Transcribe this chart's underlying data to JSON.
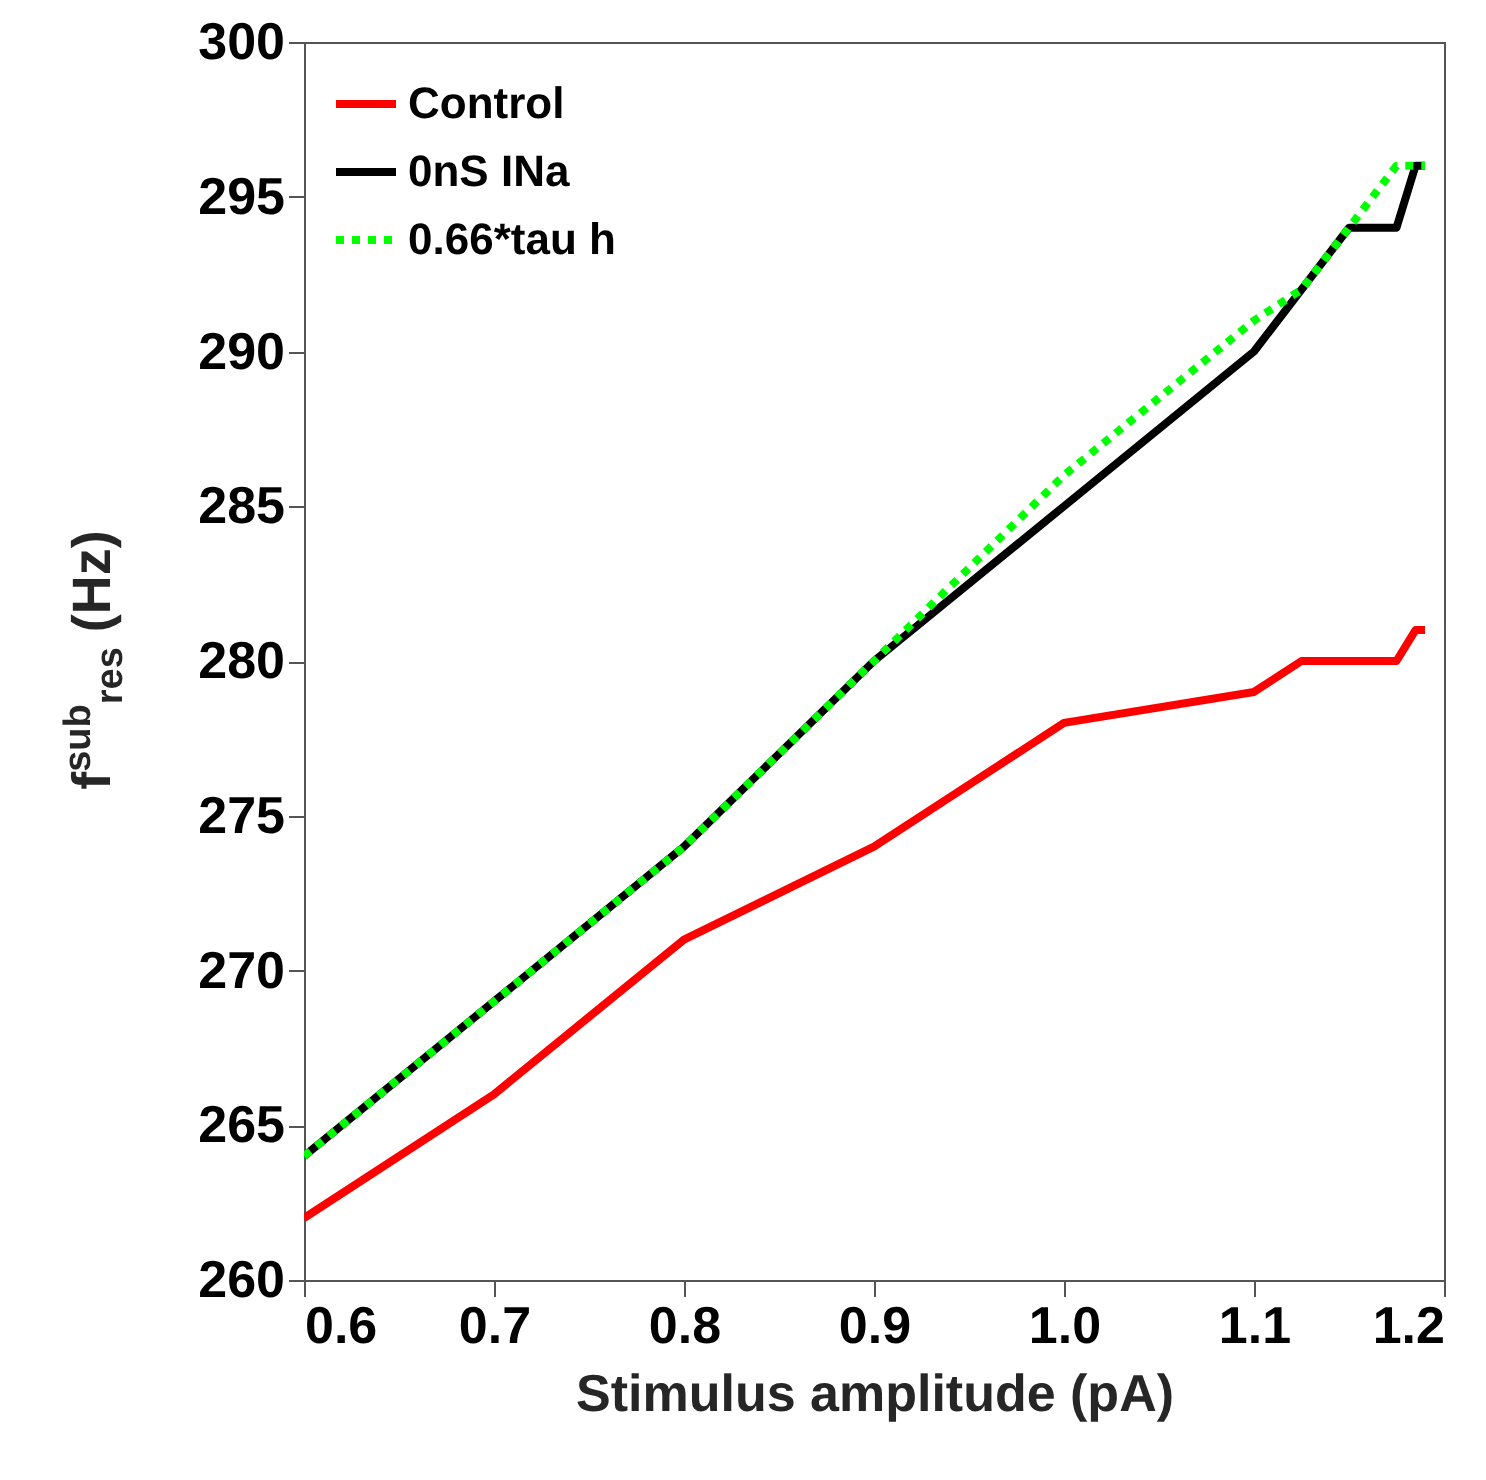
{
  "chart_data": {
    "type": "line",
    "xlabel": "Stimulus amplitude (pA)",
    "ylabel": "f$^{sub}$$_{res}$ (Hz)",
    "xlim": [
      0.6,
      1.2
    ],
    "xticks": [
      0.6,
      0.7,
      0.8,
      0.9,
      {
        "value": 1,
        "label": "1.0"
      },
      1.1,
      1.2
    ],
    "ylim": [
      260,
      300
    ],
    "yticks": [
      260,
      265,
      270,
      275,
      280,
      285,
      290,
      295,
      300
    ],
    "grid": false,
    "legend": "top left",
    "marker": "none",
    "series": [
      {
        "name": "Control",
        "color": "#ff0000",
        "line_style": "solid",
        "x": [
          0.6,
          0.7,
          0.8,
          0.9,
          1.0,
          1.1,
          1.125,
          1.175,
          1.185,
          1.19
        ],
        "values": [
          262,
          266,
          271,
          274,
          278,
          279,
          280,
          280,
          281,
          281
        ]
      },
      {
        "name": "0nS INa",
        "color": "#000000",
        "line_style": "solid",
        "x": [
          0.6,
          0.7,
          0.8,
          0.9,
          1.0,
          1.1,
          1.125,
          1.15,
          1.175,
          1.185,
          1.19
        ],
        "values": [
          264,
          269,
          274,
          280,
          285,
          290,
          292,
          294,
          294,
          296,
          296
        ]
      },
      {
        "name": "0.66*tau h",
        "color": "#00ff00",
        "line_style": "dotted",
        "x": [
          0.6,
          0.7,
          0.8,
          0.9,
          1.0,
          1.1,
          1.125,
          1.15,
          1.175,
          1.19
        ],
        "values": [
          264,
          269,
          274,
          280,
          286,
          291,
          292,
          294,
          296,
          296
        ]
      }
    ]
  }
}
